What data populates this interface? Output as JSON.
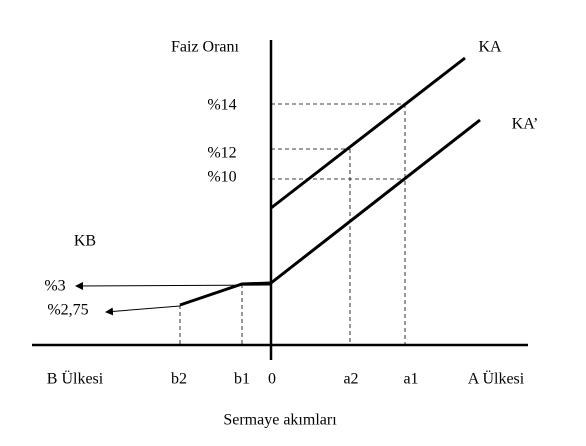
{
  "y_axis_label": "Faiz Oranı",
  "curves": {
    "ka": "KA",
    "ka_prime": "KA’",
    "kb": "KB"
  },
  "rate_labels": [
    "%14",
    "%12",
    "%10",
    "%3",
    "%2,75"
  ],
  "x_labels": [
    "B Ülkesi",
    "b2",
    "b1",
    "0",
    "a2",
    "a1",
    "A Ülkesi"
  ],
  "x_axis_label": "Sermaye akımları"
}
